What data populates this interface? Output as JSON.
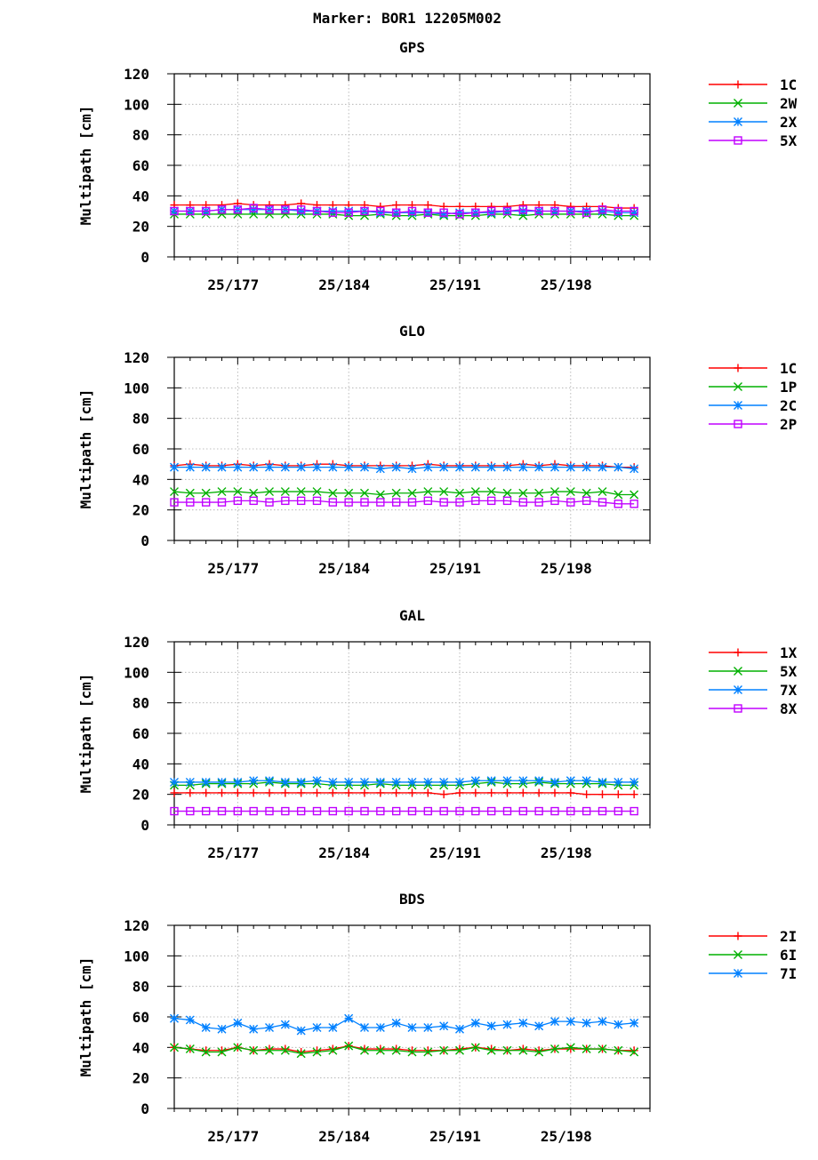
{
  "title": "Marker: BOR1 12205M002",
  "chart_data": [
    {
      "type": "line",
      "title": "GPS",
      "ylabel": "Multipath [cm]",
      "ylim": [
        0,
        120
      ],
      "yticks": [
        0,
        20,
        40,
        60,
        80,
        100,
        120
      ],
      "xlim": [
        173,
        203
      ],
      "xticks": [
        {
          "day": 177,
          "label": "25/177"
        },
        {
          "day": 184,
          "label": "25/184"
        },
        {
          "day": 191,
          "label": "25/191"
        },
        {
          "day": 198,
          "label": "25/198"
        }
      ],
      "x": [
        173,
        174,
        175,
        176,
        177,
        178,
        179,
        180,
        181,
        182,
        183,
        184,
        185,
        186,
        187,
        188,
        189,
        190,
        191,
        192,
        193,
        194,
        195,
        196,
        197,
        198,
        199,
        200,
        201,
        202
      ],
      "grid": true,
      "legend": "right",
      "series": [
        {
          "name": "1C",
          "color": "#ff0000",
          "marker": "plus",
          "values": [
            34,
            34,
            34,
            34,
            35,
            34,
            34,
            34,
            35,
            34,
            34,
            34,
            34,
            33,
            34,
            34,
            34,
            33,
            33,
            33,
            33,
            33,
            34,
            34,
            34,
            33,
            33,
            33,
            32,
            32
          ]
        },
        {
          "name": "2W",
          "color": "#00b000",
          "marker": "x",
          "values": [
            28,
            28,
            28,
            28,
            28,
            28,
            28,
            28,
            28,
            28,
            28,
            27,
            27,
            28,
            27,
            27,
            28,
            27,
            27,
            27,
            28,
            28,
            27,
            28,
            28,
            28,
            28,
            28,
            27,
            27
          ]
        },
        {
          "name": "2X",
          "color": "#0080ff",
          "marker": "star",
          "values": [
            30,
            30,
            30,
            31,
            31,
            31,
            31,
            31,
            30,
            30,
            30,
            30,
            30,
            29,
            29,
            29,
            29,
            28,
            29,
            29,
            29,
            30,
            30,
            30,
            30,
            30,
            30,
            30,
            29,
            29
          ]
        },
        {
          "name": "5X",
          "color": "#c000ff",
          "marker": "square",
          "values": [
            30,
            30,
            30,
            31,
            31,
            32,
            31,
            31,
            31,
            30,
            29,
            29,
            30,
            30,
            29,
            30,
            29,
            29,
            28,
            29,
            30,
            30,
            31,
            30,
            30,
            30,
            29,
            31,
            30,
            30
          ]
        }
      ]
    },
    {
      "type": "line",
      "title": "GLO",
      "ylabel": "Multipath [cm]",
      "ylim": [
        0,
        120
      ],
      "yticks": [
        0,
        20,
        40,
        60,
        80,
        100,
        120
      ],
      "xlim": [
        173,
        203
      ],
      "xticks": [
        {
          "day": 177,
          "label": "25/177"
        },
        {
          "day": 184,
          "label": "25/184"
        },
        {
          "day": 191,
          "label": "25/191"
        },
        {
          "day": 198,
          "label": "25/198"
        }
      ],
      "x": [
        173,
        174,
        175,
        176,
        177,
        178,
        179,
        180,
        181,
        182,
        183,
        184,
        185,
        186,
        187,
        188,
        189,
        190,
        191,
        192,
        193,
        194,
        195,
        196,
        197,
        198,
        199,
        200,
        201,
        202
      ],
      "grid": true,
      "legend": "right",
      "series": [
        {
          "name": "1C",
          "color": "#ff0000",
          "marker": "plus",
          "values": [
            49,
            50,
            49,
            49,
            50,
            49,
            50,
            49,
            49,
            50,
            50,
            49,
            49,
            49,
            49,
            49,
            50,
            49,
            49,
            49,
            49,
            49,
            50,
            49,
            50,
            49,
            49,
            49,
            48,
            48
          ]
        },
        {
          "name": "1P",
          "color": "#00b000",
          "marker": "x",
          "values": [
            32,
            31,
            31,
            32,
            32,
            31,
            32,
            32,
            32,
            32,
            31,
            31,
            31,
            30,
            31,
            31,
            32,
            32,
            31,
            32,
            32,
            31,
            31,
            31,
            32,
            32,
            31,
            32,
            30,
            30
          ]
        },
        {
          "name": "2C",
          "color": "#0080ff",
          "marker": "star",
          "values": [
            48,
            48,
            48,
            48,
            48,
            48,
            48,
            48,
            48,
            48,
            48,
            48,
            48,
            47,
            48,
            47,
            48,
            48,
            48,
            48,
            48,
            48,
            48,
            48,
            48,
            48,
            48,
            48,
            48,
            47
          ]
        },
        {
          "name": "2P",
          "color": "#c000ff",
          "marker": "square",
          "values": [
            25,
            25,
            25,
            25,
            26,
            26,
            25,
            26,
            26,
            26,
            25,
            25,
            25,
            25,
            25,
            25,
            26,
            25,
            25,
            26,
            26,
            26,
            25,
            25,
            26,
            25,
            26,
            25,
            24,
            24
          ]
        }
      ]
    },
    {
      "type": "line",
      "title": "GAL",
      "ylabel": "Multipath [cm]",
      "ylim": [
        0,
        120
      ],
      "yticks": [
        0,
        20,
        40,
        60,
        80,
        100,
        120
      ],
      "xlim": [
        173,
        203
      ],
      "xticks": [
        {
          "day": 177,
          "label": "25/177"
        },
        {
          "day": 184,
          "label": "25/184"
        },
        {
          "day": 191,
          "label": "25/191"
        },
        {
          "day": 198,
          "label": "25/198"
        }
      ],
      "x": [
        173,
        174,
        175,
        176,
        177,
        178,
        179,
        180,
        181,
        182,
        183,
        184,
        185,
        186,
        187,
        188,
        189,
        190,
        191,
        192,
        193,
        194,
        195,
        196,
        197,
        198,
        199,
        200,
        201,
        202
      ],
      "grid": true,
      "legend": "right",
      "series": [
        {
          "name": "1X",
          "color": "#ff0000",
          "marker": "plus",
          "values": [
            21,
            21,
            21,
            21,
            21,
            21,
            21,
            21,
            21,
            21,
            21,
            21,
            21,
            21,
            21,
            21,
            21,
            20,
            21,
            21,
            21,
            21,
            21,
            21,
            21,
            21,
            20,
            20,
            20,
            20
          ]
        },
        {
          "name": "5X",
          "color": "#00b000",
          "marker": "x",
          "values": [
            26,
            26,
            27,
            27,
            27,
            27,
            28,
            27,
            27,
            27,
            26,
            26,
            26,
            27,
            26,
            26,
            26,
            26,
            26,
            27,
            28,
            27,
            27,
            28,
            27,
            27,
            27,
            27,
            26,
            26
          ]
        },
        {
          "name": "7X",
          "color": "#0080ff",
          "marker": "star",
          "values": [
            28,
            28,
            28,
            28,
            28,
            29,
            29,
            28,
            28,
            29,
            28,
            28,
            28,
            28,
            28,
            28,
            28,
            28,
            28,
            29,
            29,
            29,
            29,
            29,
            28,
            29,
            29,
            28,
            28,
            28
          ]
        },
        {
          "name": "8X",
          "color": "#c000ff",
          "marker": "square",
          "values": [
            9,
            9,
            9,
            9,
            9,
            9,
            9,
            9,
            9,
            9,
            9,
            9,
            9,
            9,
            9,
            9,
            9,
            9,
            9,
            9,
            9,
            9,
            9,
            9,
            9,
            9,
            9,
            9,
            9,
            9
          ]
        }
      ]
    },
    {
      "type": "line",
      "title": "BDS",
      "ylabel": "Multipath [cm]",
      "ylim": [
        0,
        120
      ],
      "yticks": [
        0,
        20,
        40,
        60,
        80,
        100,
        120
      ],
      "xlim": [
        173,
        203
      ],
      "xticks": [
        {
          "day": 177,
          "label": "25/177"
        },
        {
          "day": 184,
          "label": "25/184"
        },
        {
          "day": 191,
          "label": "25/191"
        },
        {
          "day": 198,
          "label": "25/198"
        }
      ],
      "x": [
        173,
        174,
        175,
        176,
        177,
        178,
        179,
        180,
        181,
        182,
        183,
        184,
        185,
        186,
        187,
        188,
        189,
        190,
        191,
        192,
        193,
        194,
        195,
        196,
        197,
        198,
        199,
        200,
        201,
        202
      ],
      "grid": true,
      "legend": "right",
      "series": [
        {
          "name": "2I",
          "color": "#ff0000",
          "marker": "plus",
          "values": [
            40,
            39,
            38,
            38,
            40,
            38,
            39,
            39,
            37,
            38,
            39,
            41,
            39,
            39,
            39,
            38,
            38,
            38,
            39,
            40,
            39,
            38,
            39,
            38,
            39,
            39,
            39,
            39,
            38,
            38
          ]
        },
        {
          "name": "6I",
          "color": "#00b000",
          "marker": "x",
          "values": [
            40,
            39,
            37,
            37,
            40,
            38,
            38,
            38,
            36,
            37,
            38,
            41,
            38,
            38,
            38,
            37,
            37,
            38,
            38,
            40,
            38,
            38,
            38,
            37,
            39,
            40,
            39,
            39,
            38,
            37
          ]
        },
        {
          "name": "7I",
          "color": "#0080ff",
          "marker": "star",
          "values": [
            59,
            58,
            53,
            52,
            56,
            52,
            53,
            55,
            51,
            53,
            53,
            59,
            53,
            53,
            56,
            53,
            53,
            54,
            52,
            56,
            54,
            55,
            56,
            54,
            57,
            57,
            56,
            57,
            55,
            56
          ]
        }
      ]
    }
  ]
}
